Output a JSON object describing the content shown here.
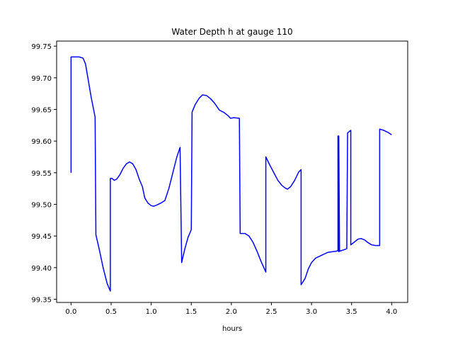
{
  "chart_data": {
    "type": "line",
    "title": "Water Depth h at gauge 110",
    "xlabel": "hours",
    "ylabel": "",
    "xlim": [
      -0.18,
      4.2
    ],
    "ylim": [
      99.345,
      99.758
    ],
    "grid": false,
    "x_ticks": [
      0.0,
      0.5,
      1.0,
      1.5,
      2.0,
      2.5,
      3.0,
      3.5,
      4.0
    ],
    "x_tick_labels": [
      "0.0",
      "0.5",
      "1.0",
      "1.5",
      "2.0",
      "2.5",
      "3.0",
      "3.5",
      "4.0"
    ],
    "y_ticks": [
      99.35,
      99.4,
      99.45,
      99.5,
      99.55,
      99.6,
      99.65,
      99.7,
      99.75
    ],
    "y_tick_labels": [
      "99.35",
      "99.40",
      "99.45",
      "99.50",
      "99.55",
      "99.60",
      "99.65",
      "99.70",
      "99.75"
    ],
    "series": [
      {
        "name": "",
        "color": "#0000ff",
        "points": [
          [
            0.0,
            99.55
          ],
          [
            0.0,
            99.733
          ],
          [
            0.05,
            99.733
          ],
          [
            0.1,
            99.733
          ],
          [
            0.15,
            99.731
          ],
          [
            0.18,
            99.722
          ],
          [
            0.21,
            99.7
          ],
          [
            0.25,
            99.67
          ],
          [
            0.3,
            99.638
          ],
          [
            0.31,
            99.452
          ],
          [
            0.35,
            99.43
          ],
          [
            0.4,
            99.4
          ],
          [
            0.45,
            99.375
          ],
          [
            0.49,
            99.363
          ],
          [
            0.49,
            99.541
          ],
          [
            0.51,
            99.541
          ],
          [
            0.54,
            99.538
          ],
          [
            0.57,
            99.54
          ],
          [
            0.61,
            99.547
          ],
          [
            0.65,
            99.557
          ],
          [
            0.69,
            99.564
          ],
          [
            0.73,
            99.567
          ],
          [
            0.77,
            99.564
          ],
          [
            0.81,
            99.555
          ],
          [
            0.85,
            99.54
          ],
          [
            0.89,
            99.528
          ],
          [
            0.92,
            99.51
          ],
          [
            0.96,
            99.502
          ],
          [
            1.0,
            99.498
          ],
          [
            1.03,
            99.497
          ],
          [
            1.07,
            99.499
          ],
          [
            1.12,
            99.502
          ],
          [
            1.17,
            99.506
          ],
          [
            1.22,
            99.525
          ],
          [
            1.27,
            99.55
          ],
          [
            1.32,
            99.575
          ],
          [
            1.36,
            99.59
          ],
          [
            1.38,
            99.408
          ],
          [
            1.42,
            99.43
          ],
          [
            1.46,
            99.448
          ],
          [
            1.5,
            99.46
          ],
          [
            1.51,
            99.646
          ],
          [
            1.55,
            99.658
          ],
          [
            1.6,
            99.668
          ],
          [
            1.64,
            99.673
          ],
          [
            1.69,
            99.672
          ],
          [
            1.74,
            99.667
          ],
          [
            1.79,
            99.66
          ],
          [
            1.85,
            99.649
          ],
          [
            1.91,
            99.645
          ],
          [
            1.96,
            99.64
          ],
          [
            1.99,
            99.636
          ],
          [
            2.03,
            99.637
          ],
          [
            2.1,
            99.636
          ],
          [
            2.11,
            99.454
          ],
          [
            2.17,
            99.454
          ],
          [
            2.22,
            99.45
          ],
          [
            2.27,
            99.44
          ],
          [
            2.32,
            99.426
          ],
          [
            2.37,
            99.41
          ],
          [
            2.43,
            99.393
          ],
          [
            2.43,
            99.575
          ],
          [
            2.48,
            99.562
          ],
          [
            2.53,
            99.55
          ],
          [
            2.58,
            99.538
          ],
          [
            2.63,
            99.53
          ],
          [
            2.67,
            99.526
          ],
          [
            2.7,
            99.524
          ],
          [
            2.74,
            99.528
          ],
          [
            2.79,
            99.538
          ],
          [
            2.84,
            99.551
          ],
          [
            2.87,
            99.555
          ],
          [
            2.87,
            99.373
          ],
          [
            2.92,
            99.383
          ],
          [
            2.96,
            99.398
          ],
          [
            3.0,
            99.408
          ],
          [
            3.05,
            99.415
          ],
          [
            3.1,
            99.418
          ],
          [
            3.15,
            99.421
          ],
          [
            3.2,
            99.424
          ],
          [
            3.25,
            99.425
          ],
          [
            3.31,
            99.426
          ],
          [
            3.33,
            99.427
          ],
          [
            3.33,
            99.608
          ],
          [
            3.34,
            99.425
          ],
          [
            3.34,
            99.608
          ],
          [
            3.35,
            99.426
          ],
          [
            3.4,
            99.428
          ],
          [
            3.44,
            99.43
          ],
          [
            3.45,
            99.613
          ],
          [
            3.49,
            99.617
          ],
          [
            3.49,
            99.436
          ],
          [
            3.53,
            99.44
          ],
          [
            3.58,
            99.445
          ],
          [
            3.62,
            99.446
          ],
          [
            3.66,
            99.444
          ],
          [
            3.7,
            99.44
          ],
          [
            3.75,
            99.436
          ],
          [
            3.8,
            99.435
          ],
          [
            3.85,
            99.435
          ],
          [
            3.85,
            99.619
          ],
          [
            3.9,
            99.617
          ],
          [
            3.95,
            99.614
          ],
          [
            4.0,
            99.61
          ]
        ]
      }
    ]
  }
}
